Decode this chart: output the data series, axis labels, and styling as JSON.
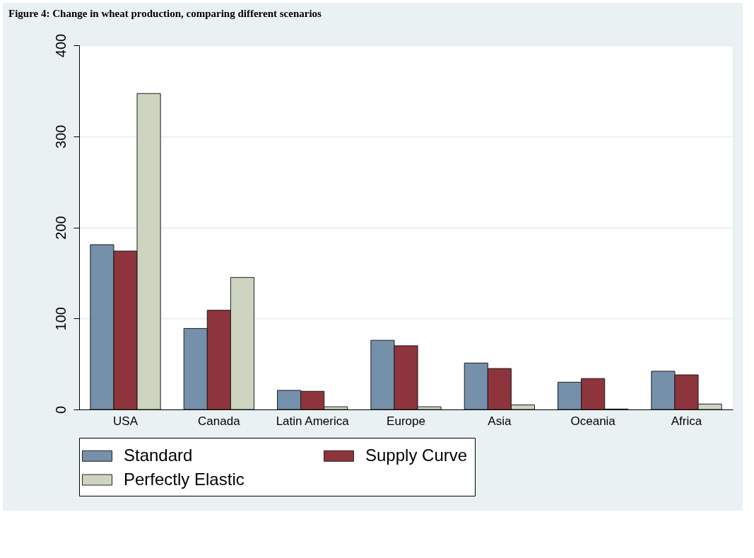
{
  "chart_data": {
    "type": "bar",
    "title": "Figure 4: Change in wheat production, comparing different scenarios",
    "categories": [
      "USA",
      "Canada",
      "Latin America",
      "Europe",
      "Asia",
      "Oceania",
      "Africa"
    ],
    "series": [
      {
        "name": "Standard",
        "color": "#7590aa",
        "values": [
          181,
          89,
          21,
          76,
          51,
          30,
          42
        ]
      },
      {
        "name": "Supply Curve",
        "color": "#8e343c",
        "values": [
          174,
          109,
          20,
          70,
          45,
          34,
          38
        ]
      },
      {
        "name": "Perfectly Elastic",
        "color": "#cdd5c0",
        "values": [
          347,
          145,
          3,
          3,
          5,
          0.5,
          6
        ]
      }
    ],
    "ylim": [
      0,
      400
    ],
    "yticks": [
      0,
      100,
      200,
      300,
      400
    ],
    "grid": "y",
    "legend": "bottom"
  }
}
